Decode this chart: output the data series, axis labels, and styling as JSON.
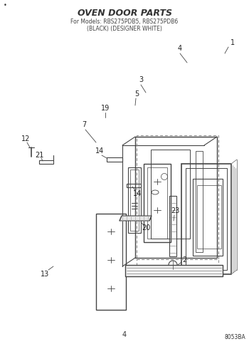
{
  "title": "OVEN DOOR PARTS",
  "subtitle1": "For Models: RBS275PDB5, RBS275PDB6",
  "subtitle2": "(BLACK) (DESIGNER WHITE)",
  "page_num": "4",
  "part_num": "8053BA",
  "bg_color": "#ffffff",
  "lc": "#444444",
  "title_color": "#222222"
}
